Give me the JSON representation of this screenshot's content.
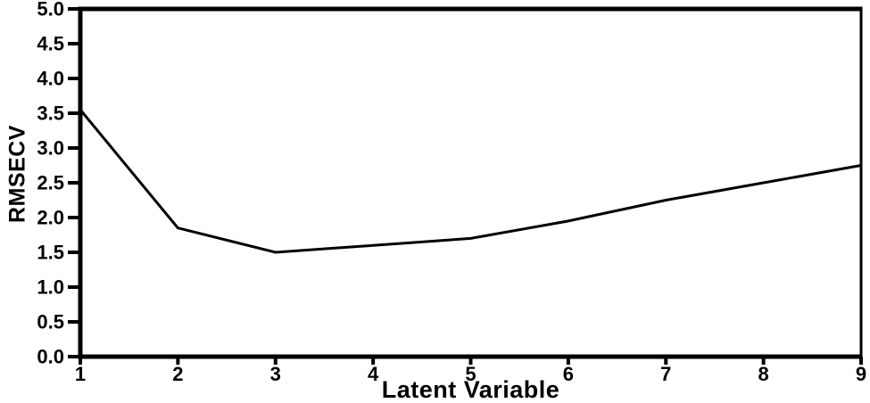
{
  "figure": {
    "background": "#ffffff"
  },
  "chart_data": {
    "type": "line",
    "title": "",
    "xlabel": "Latent Variable",
    "ylabel": "RMSECV",
    "x": [
      1,
      2,
      3,
      4,
      5,
      6,
      7,
      8,
      9
    ],
    "series": [
      {
        "name": "RMSECV",
        "values": [
          3.55,
          1.85,
          1.5,
          1.6,
          1.7,
          1.95,
          2.25,
          2.5,
          2.75
        ]
      }
    ],
    "xlim": [
      1,
      9
    ],
    "ylim": [
      0.0,
      5.0
    ],
    "x_ticks": [
      1,
      2,
      3,
      4,
      5,
      6,
      7,
      8,
      9
    ],
    "y_ticks": [
      0.0,
      0.5,
      1.0,
      1.5,
      2.0,
      2.5,
      3.0,
      3.5,
      4.0,
      4.5,
      5.0
    ],
    "y_tick_decimals": 1,
    "grid": false,
    "legend": "none",
    "frame": true,
    "line_color": "#000000",
    "axis_color": "#000000",
    "text_color": "#000000"
  }
}
